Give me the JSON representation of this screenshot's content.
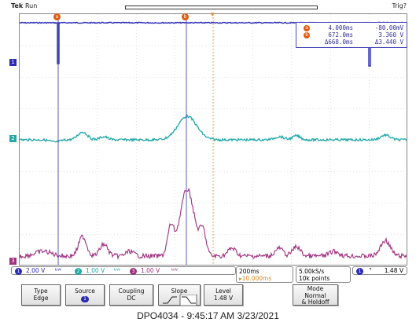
{
  "header": {
    "brand": "Tek",
    "state": "Run",
    "trigger_status": "Trig?"
  },
  "measurements": {
    "row_a": {
      "label": "a",
      "time": "4.000ms",
      "value": "-80.00mV"
    },
    "row_b": {
      "label": "b",
      "time": "672.0ms",
      "value": "3.360 V"
    },
    "row_delta": {
      "time": "Δ668.0ms",
      "value": "Δ3.440 V"
    }
  },
  "channels": {
    "ch1": {
      "label": "1",
      "scale": "2.00 V",
      "color": "#2b2bb5"
    },
    "ch2": {
      "label": "2",
      "scale": "1.00 V",
      "color": "#21a8a8"
    },
    "ch3": {
      "label": "3",
      "scale": "1.00 V",
      "color": "#a0307e"
    }
  },
  "timebase": {
    "scale": "200ms",
    "delay": "▸10.000ms"
  },
  "sampling": {
    "rate": "5.00kS/s",
    "points": "10k points"
  },
  "trigger": {
    "source": "1",
    "slope_symbol": "⌝",
    "level": "1.48 V"
  },
  "menu": {
    "type": {
      "title": "Type",
      "value": "Edge"
    },
    "source": {
      "title": "Source",
      "value": "1"
    },
    "coupling": {
      "title": "Coupling",
      "value": "DC"
    },
    "slope": {
      "title": "Slope"
    },
    "level": {
      "title": "Level",
      "value": "1.48 V"
    },
    "mode": {
      "title": "Mode",
      "value1": "Normal",
      "value2": "& Holdoff"
    }
  },
  "caption": "DPO4034 - 9:45:17 AM   3/23/2021",
  "cursor_labels": {
    "a": "a",
    "b": "b"
  },
  "chart_data": {
    "type": "line",
    "series": [
      {
        "name": "1",
        "description": "square pulse train, high level ~3.3V with short dips"
      },
      {
        "name": "2",
        "description": "flat with bumps and central peak"
      },
      {
        "name": "3",
        "description": "noisy with central large peak"
      }
    ]
  }
}
